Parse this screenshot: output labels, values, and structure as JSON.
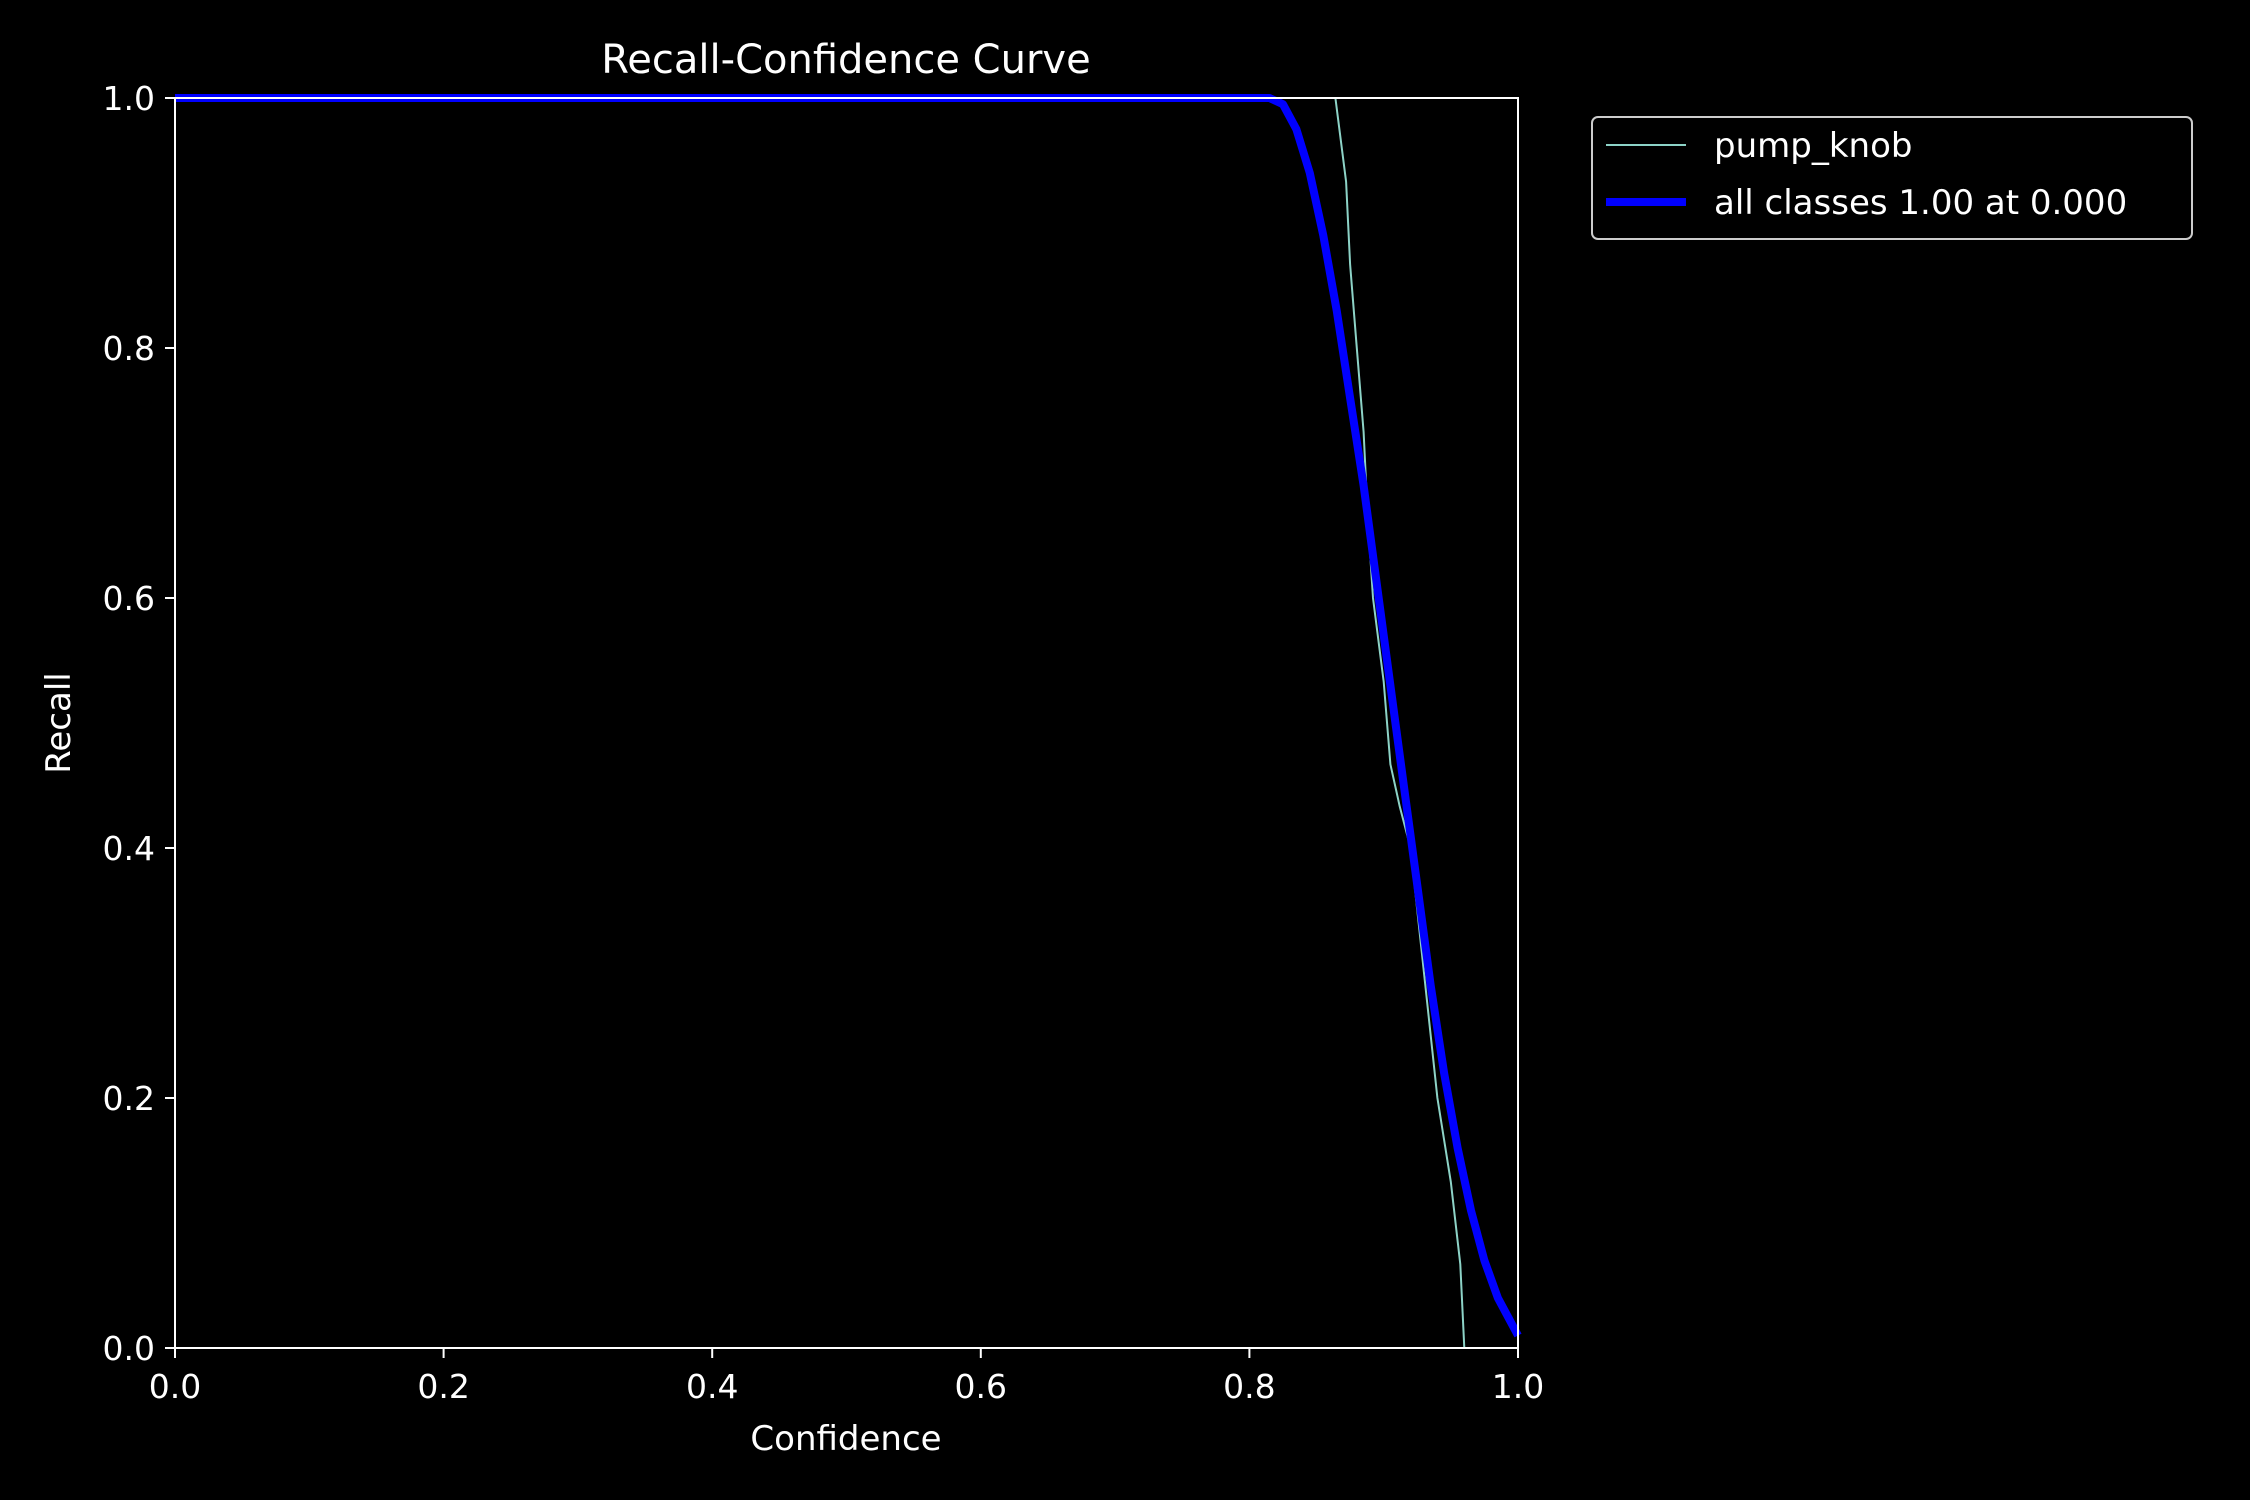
{
  "chart_data": {
    "type": "line",
    "title": "Recall-Confidence Curve",
    "xlabel": "Confidence",
    "ylabel": "Recall",
    "xlim": [
      0.0,
      1.0
    ],
    "ylim": [
      0.0,
      1.0
    ],
    "x_ticks": [
      "0.0",
      "0.2",
      "0.4",
      "0.6",
      "0.8",
      "1.0"
    ],
    "y_ticks": [
      "0.0",
      "0.2",
      "0.4",
      "0.6",
      "0.8",
      "1.0"
    ],
    "grid": false,
    "legend_position": "outside-top-right",
    "series": [
      {
        "name": "pump_knob",
        "color": "#8dd3c7",
        "x": [
          0.0,
          0.5,
          0.864,
          0.872,
          0.875,
          0.88,
          0.885,
          0.888,
          0.892,
          0.9,
          0.905,
          0.912,
          0.92,
          0.93,
          0.94,
          0.95,
          0.957,
          0.96,
          0.961,
          0.97,
          1.0
        ],
        "y": [
          1.0,
          1.0,
          1.0,
          0.933,
          0.867,
          0.8,
          0.733,
          0.667,
          0.6,
          0.533,
          0.467,
          0.433,
          0.4,
          0.3,
          0.2,
          0.133,
          0.067,
          0.0,
          0.0,
          0.0,
          0.0
        ]
      },
      {
        "name": "all classes 1.00 at 0.000",
        "color": "#0000ff",
        "x": [
          0.0,
          0.5,
          0.815,
          0.825,
          0.835,
          0.845,
          0.855,
          0.865,
          0.875,
          0.885,
          0.895,
          0.905,
          0.915,
          0.925,
          0.935,
          0.945,
          0.955,
          0.965,
          0.975,
          0.985,
          0.995,
          1.0
        ],
        "y": [
          1.0,
          1.0,
          1.0,
          0.995,
          0.975,
          0.94,
          0.89,
          0.83,
          0.76,
          0.69,
          0.61,
          0.53,
          0.45,
          0.37,
          0.29,
          0.22,
          0.16,
          0.11,
          0.07,
          0.04,
          0.02,
          0.01
        ]
      }
    ]
  }
}
